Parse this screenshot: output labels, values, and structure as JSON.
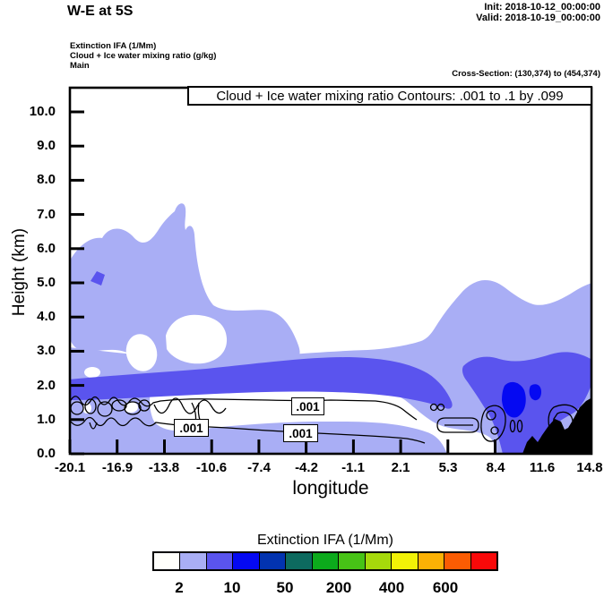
{
  "header": {
    "title": "W-E at 5S",
    "init_label": "Init: 2018-10-12_00:00:00",
    "valid_label": "Valid: 2018-10-19_00:00:00"
  },
  "legend_block": {
    "line1": "Extinction IFA   (1/Mm)",
    "line2": "Cloud + Ice water mixing ratio   (g/kg)",
    "line3": "Main"
  },
  "cross_section_label": "Cross-Section: (130,374) to (454,374)",
  "plot": {
    "contour_title": "Cloud + Ice water mixing ratio Contours: .001 to .1 by .099",
    "contour_labels": [
      ".001",
      ".001",
      ".001"
    ]
  },
  "axes": {
    "ylabel": "Height (km)",
    "xlabel": "longitude",
    "yticks": [
      "10.0",
      "9.0",
      "8.0",
      "7.0",
      "6.0",
      "5.0",
      "4.0",
      "3.0",
      "2.0",
      "1.0",
      "0.0"
    ],
    "xticks": [
      "-20.1",
      "-16.9",
      "-13.8",
      "-10.6",
      "-7.4",
      "-4.2",
      "-1.1",
      "2.1",
      "5.3",
      "8.4",
      "11.6",
      "14.8"
    ]
  },
  "colorbar": {
    "title": "Extinction IFA  (1/Mm)",
    "colors": [
      "#fffffb",
      "#a9aef5",
      "#5a54ee",
      "#0509f2",
      "#0233b0",
      "#0d6a5f",
      "#0caa1c",
      "#47c316",
      "#a6d90b",
      "#f2f207",
      "#fcb105",
      "#fb5c03",
      "#f90909"
    ],
    "tick_labels": [
      "2",
      "10",
      "50",
      "200",
      "400",
      "600"
    ]
  },
  "chart_data": {
    "type": "heatmap",
    "subtype": "filled-contour vertical cross-section with line contours overlaid",
    "title": "W-E at 5S",
    "xlabel": "longitude",
    "ylabel": "Height (km)",
    "xlim": [
      -20.1,
      14.8
    ],
    "ylim": [
      0.0,
      10.7
    ],
    "x_ticks": [
      -20.1,
      -16.9,
      -13.8,
      -10.6,
      -7.4,
      -4.2,
      -1.1,
      2.1,
      5.3,
      8.4,
      11.6,
      14.8
    ],
    "y_ticks": [
      0.0,
      1.0,
      2.0,
      3.0,
      4.0,
      5.0,
      6.0,
      7.0,
      8.0,
      9.0,
      10.0
    ],
    "fill_variable": "Extinction IFA (1/Mm)",
    "fill_level_labels": [
      2,
      10,
      50,
      200,
      400,
      600
    ],
    "contour_variable": "Cloud + Ice water mixing ratio (g/kg)",
    "contour_levels": [
      0.001,
      0.1
    ],
    "grid": false,
    "legend_position": "bottom colorbar",
    "shaded_regions": [
      {
        "value_range": "2-10 1/Mm",
        "color": "#a9aef5",
        "description": "Broad low layer 0-3 km across all longitudes, rising to a ~5.1 km hump near lon 5-9; detached elevated cloud from lon -20.1 to -4.4 between 2 and 7.2 km with narrow spike to 7.2 km near lon -12.5; white (<2) holes near lon -15 to -9 at 2-4 km and a near-surface clear strip 0.5-1.8 km from lon -15 to 8"
      },
      {
        "value_range": "10-50 1/Mm",
        "color": "#5a54ee",
        "description": "Wavy band at ~1.6-2.8 km from lon -20.1 to 5.6; blob from lon 6.3 to 14.8 between 0 and 2.9 km; small spot at lon -18.3, 5.1 km"
      },
      {
        "value_range": "50-200 1/Mm",
        "color": "#0509f2",
        "description": "Cores near lon 9-11.6 at 1.0-2.2 km"
      },
      {
        "value_range": "terrain",
        "color": "#000000",
        "description": "Black terrain silhouette from lon 10.3 to 14.8 rising to ~1.65 km at the right edge"
      }
    ],
    "line_contours": {
      "level": 0.001,
      "description": "Two quasi-horizontal 0.001 g/kg contours near 1.0-1.6 km from lon -20.1 to ~6 with closed loops at the west end and near lon 8-13; labels .001 at approx lon -5.5/1.4 km, -12.5/0.8 km, -5.3/0.6 km"
    }
  }
}
